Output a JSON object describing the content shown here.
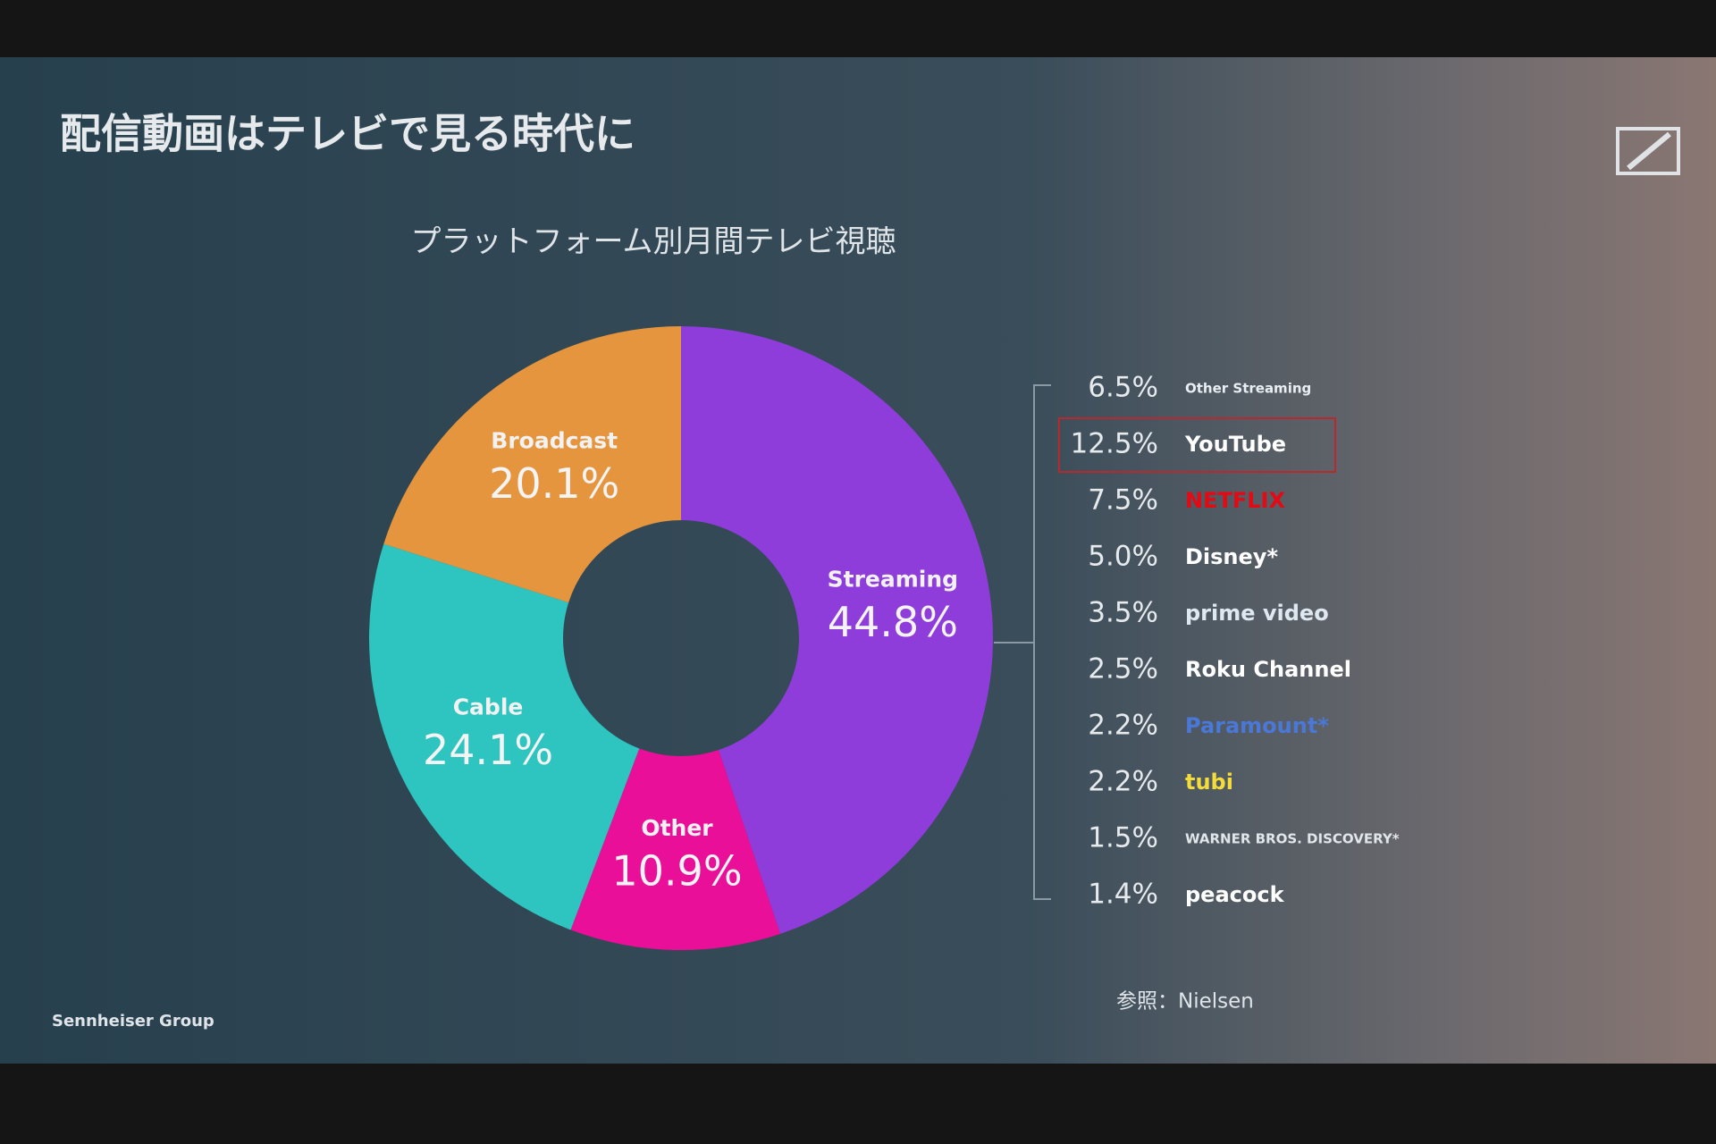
{
  "slide": {
    "title": "配信動画はテレビで見る時代に",
    "footer": "Sennheiser Group",
    "source": "参照：Nielsen"
  },
  "chart_data": {
    "type": "pie",
    "donut": true,
    "title": "プラットフォーム別月間テレビ視聴",
    "categories": [
      "Streaming",
      "Other",
      "Cable",
      "Broadcast"
    ],
    "values": [
      44.8,
      10.9,
      24.1,
      20.1
    ],
    "value_labels": [
      "44.8%",
      "10.9%",
      "24.1%",
      "20.1%"
    ],
    "colors": [
      "#8e3ddb",
      "#ea0f98",
      "#2ec4bf",
      "#e5953e"
    ],
    "breakdown": {
      "categories": [
        "Other Streaming",
        "YouTube",
        "NETFLIX",
        "Disney*",
        "prime video",
        "Roku Channel",
        "Paramount*",
        "tubi",
        "WARNER BROS. DISCOVERY*",
        "peacock"
      ],
      "values": [
        6.5,
        12.5,
        7.5,
        5.0,
        3.5,
        2.5,
        2.2,
        2.2,
        1.5,
        1.4
      ],
      "value_labels": [
        "6.5%",
        "12.5%",
        "7.5%",
        "5.0%",
        "3.5%",
        "2.5%",
        "2.2%",
        "2.2%",
        "1.5%",
        "1.4%"
      ],
      "colors": [
        "#e8eef2",
        "#ffffff",
        "#e50914",
        "#ffffff",
        "#dfe8f0",
        "#ffffff",
        "#4a78d8",
        "#f4dc3a",
        "#e0e6ea",
        "#ffffff"
      ],
      "highlight": "YouTube"
    }
  }
}
